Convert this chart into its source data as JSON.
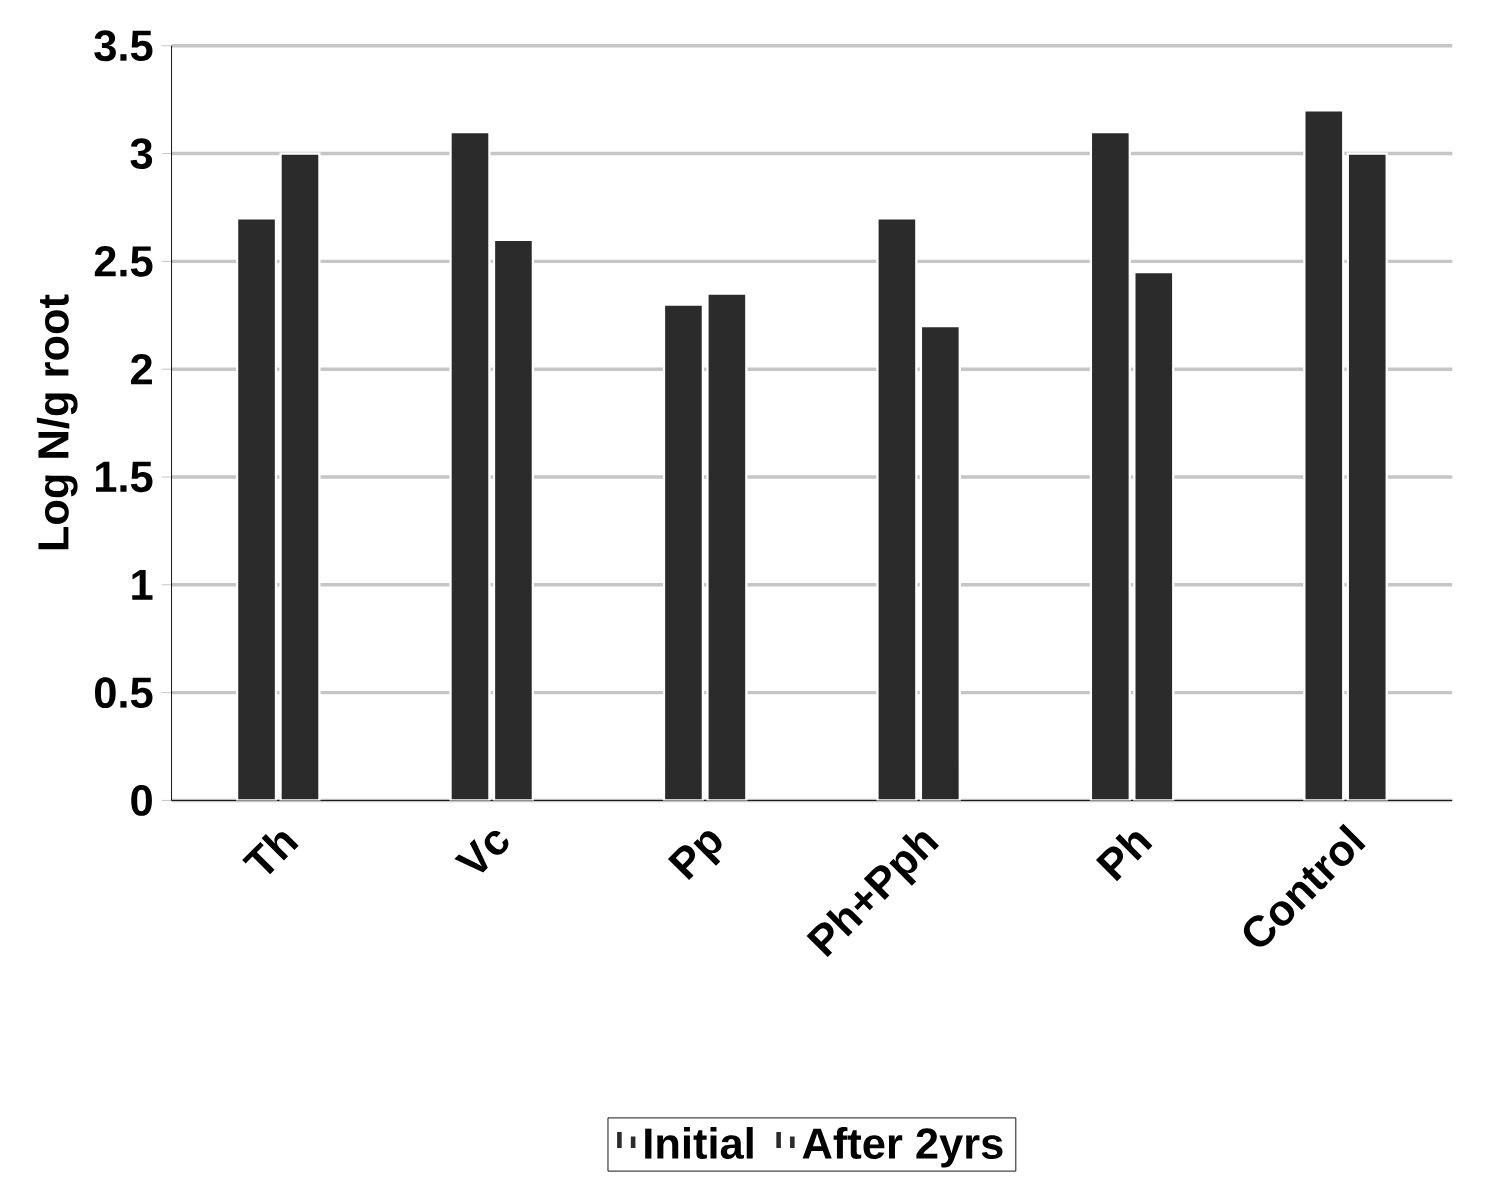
{
  "chart_data": {
    "type": "bar",
    "ylabel": "Log N/g root",
    "categories": [
      "Th",
      "Vc",
      "Pp",
      "Ph+Pph",
      "Ph",
      "Control"
    ],
    "series": [
      {
        "name": "Initial",
        "color": "#2b2b2b",
        "values": [
          2.7,
          3.1,
          2.3,
          2.7,
          3.1,
          3.2
        ]
      },
      {
        "name": "After 2yrs",
        "color": "#2b2b2b",
        "values": [
          3.0,
          2.6,
          2.35,
          2.2,
          2.45,
          3.0
        ]
      }
    ],
    "ylim": [
      0,
      3.5
    ],
    "yticks": [
      0,
      0.5,
      1,
      1.5,
      2,
      2.5,
      3,
      3.5
    ],
    "grid": "y",
    "legend": "bottom"
  }
}
